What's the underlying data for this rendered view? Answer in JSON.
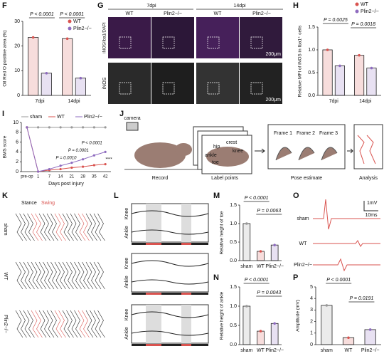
{
  "figure": {
    "panel_letters": [
      "F",
      "G",
      "H",
      "I",
      "J",
      "K",
      "L",
      "M",
      "N",
      "O",
      "P"
    ],
    "G": {
      "timepoints": [
        "7dpi",
        "14dpi"
      ],
      "groups": [
        "WT",
        "Plin2−/−",
        "WT",
        "Plin2−/−"
      ],
      "rows": [
        "iNOS/Iba1/DAPI",
        "iNOS"
      ],
      "scale_bars": [
        "200μm",
        "200μm"
      ]
    },
    "J": {
      "camera": "camera",
      "steps": [
        "Record",
        "Label points",
        "Pose estimate",
        "Analysis"
      ],
      "joints": [
        "crest",
        "hip",
        "knee",
        "ankle",
        "toe"
      ],
      "frames": [
        "Frame 1",
        "Frame 2",
        "Frame 3"
      ]
    },
    "K": {
      "phases": [
        "Stance",
        "Swing"
      ],
      "groups": [
        "sham",
        "WT",
        "Plin2−/−"
      ]
    },
    "L": {
      "joints": [
        "Knee",
        "Ankle",
        "Knee",
        "Ankle",
        "Knee",
        "Ankle"
      ]
    },
    "O": {
      "groups": [
        "sham",
        "WT",
        "Plin2−/−"
      ],
      "scale_v": "1mV",
      "scale_t": "10ms"
    }
  },
  "chart_data": [
    {
      "type": "bar",
      "y_label": "Oil Red O positive area (%)",
      "categories": [
        "7dpi",
        "14dpi"
      ],
      "series": [
        {
          "name": "WT",
          "color": "#d9534f",
          "values": [
            23.5,
            23
          ]
        },
        {
          "name": "Plin2−/−",
          "color": "#8e6bbf",
          "values": [
            9,
            7
          ]
        }
      ],
      "ylim": [
        0,
        30
      ],
      "yticks": [
        0,
        10,
        20,
        30
      ],
      "annotations": [
        "P < 0.0001",
        "P < 0.0001"
      ]
    },
    {
      "type": "bar",
      "y_label": "Relative MFI of iNOS in Iba1⁺ cells",
      "categories": [
        "7dpi",
        "14dpi"
      ],
      "series": [
        {
          "name": "WT",
          "color": "#d9534f",
          "values": [
            1.0,
            0.88
          ]
        },
        {
          "name": "Plin2−/−",
          "color": "#8e6bbf",
          "values": [
            0.65,
            0.6
          ]
        }
      ],
      "ylim": [
        0,
        1.5
      ],
      "yticks": [
        {
          "value": 0,
          "label": "0.0"
        },
        {
          "value": 0.5,
          "label": "0.5"
        },
        {
          "value": 1,
          "label": "1.0"
        },
        {
          "value": 1.5,
          "label": "1.5"
        }
      ],
      "annotations": [
        "P = 0.0025",
        "P = 0.0018"
      ]
    },
    {
      "type": "line",
      "y_label": "BMS score",
      "x_label": "Days post injury",
      "categories": [
        "pre-op",
        "1",
        "7",
        "14",
        "21",
        "28",
        "35",
        "42"
      ],
      "series": [
        {
          "name": "sham",
          "color": "#999999",
          "values": [
            9,
            9,
            9,
            9,
            9,
            9,
            9,
            9
          ]
        },
        {
          "name": "WT",
          "color": "#d9534f",
          "values": [
            9,
            0,
            0.3,
            0.5,
            0.8,
            1,
            1.3,
            1.5
          ]
        },
        {
          "name": "Plin2−/−",
          "color": "#8e6bbf",
          "values": [
            9,
            0,
            0.5,
            1.2,
            1.8,
            2.5,
            3.3,
            4
          ]
        }
      ],
      "ylim": [
        0,
        10
      ],
      "yticks": [
        0,
        2,
        4,
        6,
        8,
        10
      ],
      "annotations": [
        "P = 0.0010",
        "P = 0.0001",
        "P < 0.0001",
        "****"
      ]
    },
    {
      "type": "bar",
      "y_label": "Relative height of toe",
      "categories": [
        "sham",
        "WT",
        "Plin2−/−"
      ],
      "values": [
        1.0,
        0.25,
        0.42
      ],
      "colors": [
        "#999999",
        "#d9534f",
        "#8e6bbf"
      ],
      "ylim": [
        0,
        1.5
      ],
      "yticks": [
        {
          "value": 0,
          "label": "0.0"
        },
        {
          "value": 0.5,
          "label": "0.5"
        },
        {
          "value": 1,
          "label": "1.0"
        },
        {
          "value": 1.5,
          "label": "1.5"
        }
      ],
      "annotations": [
        "P < 0.0001",
        "P = 0.0063"
      ]
    },
    {
      "type": "bar",
      "y_label": "Relative height of ankle",
      "categories": [
        "sham",
        "WT",
        "Plin2−/−"
      ],
      "values": [
        1.0,
        0.35,
        0.55
      ],
      "colors": [
        "#999999",
        "#d9534f",
        "#8e6bbf"
      ],
      "ylim": [
        0,
        1.5
      ],
      "yticks": [
        {
          "value": 0,
          "label": "0.0"
        },
        {
          "value": 0.5,
          "label": "0.5"
        },
        {
          "value": 1,
          "label": "1.0"
        },
        {
          "value": 1.5,
          "label": "1.5"
        }
      ],
      "annotations": [
        "P < 0.0001",
        "P = 0.0043"
      ]
    },
    {
      "type": "bar",
      "y_label": "Amplitude (mV)",
      "categories": [
        "sham",
        "WT",
        "Plin2−/−"
      ],
      "values": [
        3.4,
        0.6,
        1.3
      ],
      "colors": [
        "#999999",
        "#d9534f",
        "#8e6bbf"
      ],
      "ylim": [
        0,
        5
      ],
      "yticks": [
        0,
        1,
        2,
        3,
        4,
        5
      ],
      "annotations": [
        "P < 0.0001",
        "P = 0.0191"
      ]
    }
  ]
}
